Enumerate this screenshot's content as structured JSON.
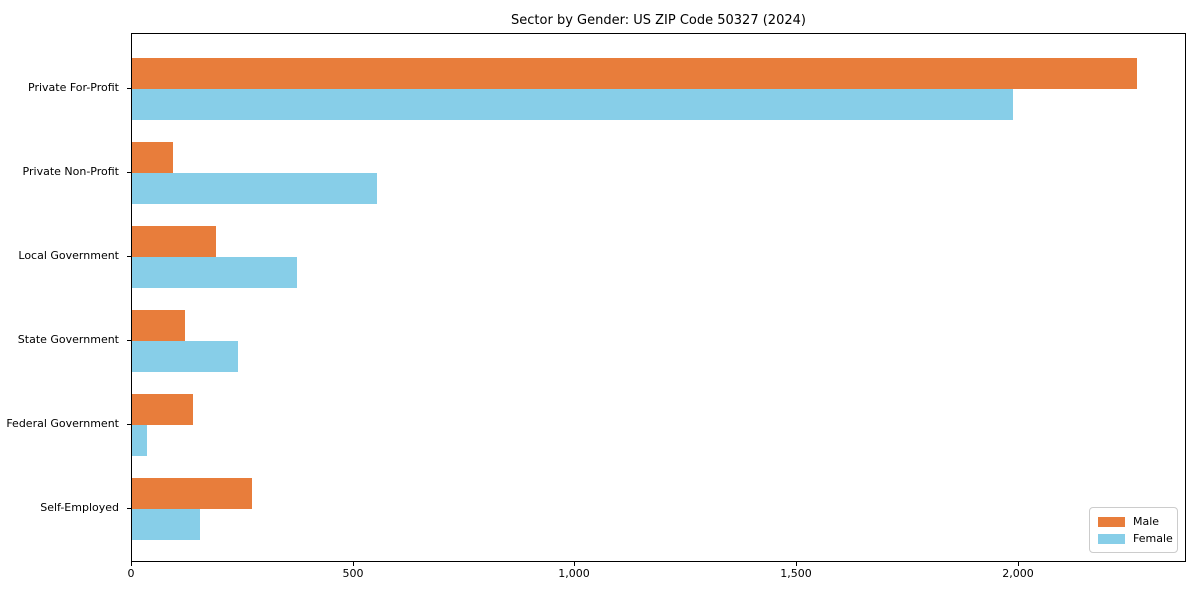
{
  "title": "Sector by Gender: US ZIP Code 50327 (2024)",
  "chart_data": {
    "type": "bar",
    "orientation": "horizontal",
    "title": "Sector by Gender: US ZIP Code 50327 (2024)",
    "xlabel": "",
    "ylabel": "",
    "categories": [
      "Private For-Profit",
      "Private Non-Profit",
      "Local Government",
      "State Government",
      "Federal Government",
      "Self-Employed"
    ],
    "series": [
      {
        "name": "Male",
        "color": "#E87D3B",
        "values": [
          2266,
          92,
          189,
          120,
          137,
          271
        ]
      },
      {
        "name": "Female",
        "color": "#87CEE8",
        "values": [
          1986,
          552,
          372,
          239,
          34,
          153
        ]
      }
    ],
    "xlim": [
      0,
      2379
    ],
    "xticks": [
      {
        "value": 0,
        "label": "0"
      },
      {
        "value": 500,
        "label": "500"
      },
      {
        "value": 1000,
        "label": "1,000"
      },
      {
        "value": 1500,
        "label": "1,500"
      },
      {
        "value": 2000,
        "label": "2,000"
      }
    ],
    "grid": false,
    "legend_position": "lower right",
    "axis_color": "#000000",
    "background_color": "#ffffff"
  }
}
